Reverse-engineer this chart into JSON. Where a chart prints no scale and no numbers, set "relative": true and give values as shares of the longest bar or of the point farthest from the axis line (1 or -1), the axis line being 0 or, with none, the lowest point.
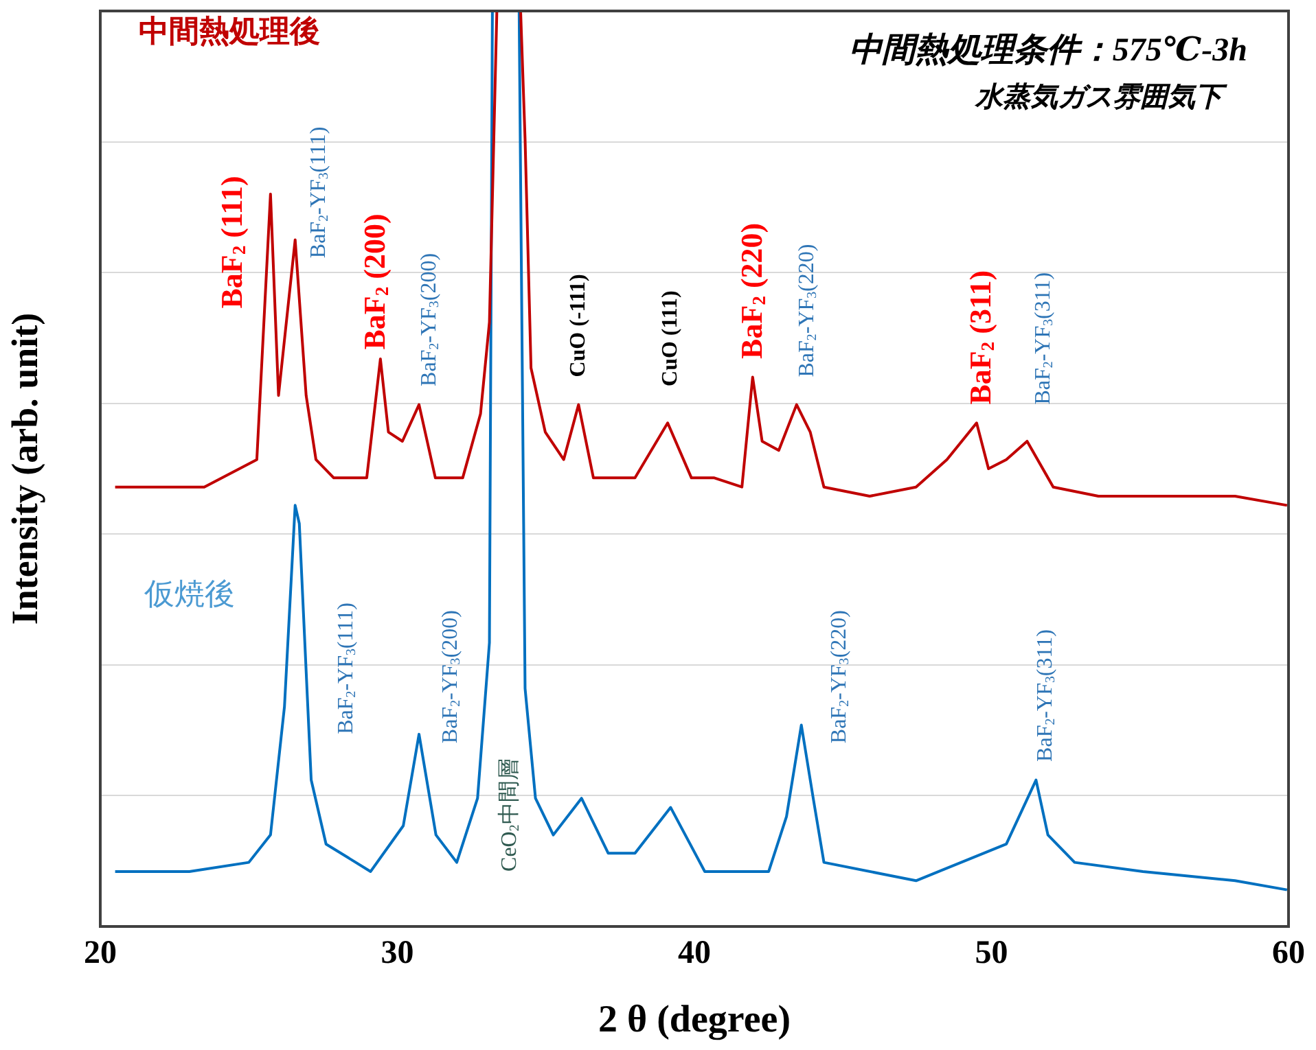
{
  "chart_data": {
    "type": "line",
    "relative": true,
    "xlabel": "2 θ (degree)",
    "ylabel": "Intensity (arb. unit)",
    "xlim": [
      20,
      60
    ],
    "xticks": [
      20,
      30,
      40,
      50,
      60
    ],
    "grid": "y",
    "series": [
      {
        "name": "中間熱処理後",
        "color": "#c00000",
        "x": [
          20.5,
          22,
          23.5,
          25.27,
          25.73,
          26.0,
          26.56,
          26.93,
          27.26,
          27.86,
          28.97,
          29.43,
          29.7,
          30.17,
          30.73,
          31.28,
          32.2,
          32.8,
          33.1,
          33.35,
          34.15,
          34.3,
          34.5,
          34.98,
          35.6,
          36.1,
          36.6,
          38.0,
          39.1,
          39.9,
          40.67,
          41.6,
          41.96,
          42.28,
          42.84,
          43.44,
          43.9,
          44.36,
          45.9,
          47.46,
          48.5,
          49.5,
          49.9,
          50.5,
          51.2,
          52.08,
          53.6,
          55.9,
          58.2,
          59.95
        ],
        "values": [
          0.48,
          0.48,
          0.48,
          0.51,
          0.8,
          0.58,
          0.75,
          0.58,
          0.51,
          0.49,
          0.49,
          0.62,
          0.54,
          0.53,
          0.57,
          0.49,
          0.49,
          0.56,
          0.66,
          1,
          1,
          0.86,
          0.61,
          0.54,
          0.51,
          0.57,
          0.49,
          0.49,
          0.55,
          0.49,
          0.49,
          0.48,
          0.6,
          0.53,
          0.52,
          0.57,
          0.54,
          0.48,
          0.47,
          0.48,
          0.51,
          0.55,
          0.5,
          0.51,
          0.53,
          0.48,
          0.47,
          0.47,
          0.47,
          0.46
        ]
      },
      {
        "name": "仮焼後",
        "color": "#0070c0",
        "x": [
          20.5,
          23,
          25,
          25.73,
          26.2,
          26.56,
          26.7,
          27.1,
          27.6,
          29.1,
          30.2,
          30.73,
          31.3,
          32.0,
          32.7,
          33.1,
          33.2,
          34.1,
          34.3,
          34.65,
          35.25,
          36.2,
          37.1,
          38.0,
          39.2,
          40.35,
          40.67,
          42.5,
          43.1,
          43.6,
          44.0,
          44.36,
          47.46,
          50.5,
          51.5,
          51.9,
          52.8,
          55.1,
          58.2,
          59.95
        ],
        "values": [
          0.06,
          0.06,
          0.07,
          0.1,
          0.24,
          0.46,
          0.44,
          0.16,
          0.09,
          0.06,
          0.11,
          0.21,
          0.1,
          0.07,
          0.14,
          0.31,
          1,
          1,
          0.26,
          0.14,
          0.1,
          0.14,
          0.08,
          0.08,
          0.13,
          0.06,
          0.06,
          0.06,
          0.12,
          0.22,
          0.14,
          0.07,
          0.05,
          0.09,
          0.16,
          0.1,
          0.07,
          0.06,
          0.05,
          0.04
        ]
      }
    ],
    "annotations": [
      "中間熱処理条件：575℃-3h",
      "水蒸気ガス雰囲気下",
      "BaF$_{2}$ (111)",
      "BaF$_{2}$-YF$_{3}$(111)",
      "BaF$_{2}$ (200)",
      "BaF$_{2}$-YF$_{3}$(200)",
      "CuO (-111)",
      "CuO (111)",
      "BaF$_{2}$ (220)",
      "BaF$_{2}$-YF$_{3}$(220)",
      "BaF$_{2}$ (311)",
      "BaF$_{2}$-YF$_{3}$(311)",
      "BaF$_{2}$-YF$_{3}$(111)",
      "BaF$_{2}$-YF$_{3}$(200)",
      "CeO$_{2}$中間層",
      "BaF$_{2}$-YF$_{3}$(220)",
      "BaF$_{2}$-YF$_{3}$(311)"
    ]
  }
}
